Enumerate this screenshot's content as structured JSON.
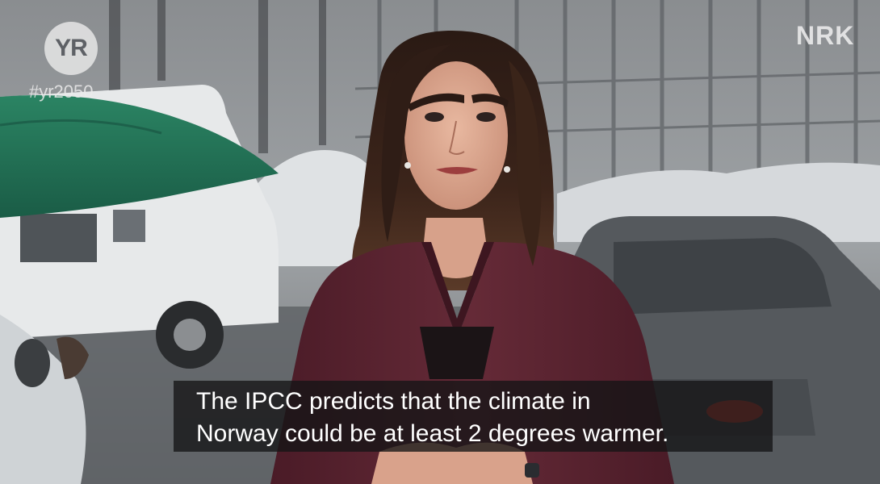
{
  "broadcast": {
    "yr_logo": "YR",
    "hashtag": "#yr2050",
    "channel_logo": "NRK"
  },
  "subtitle": {
    "line1": "The IPCC predicts that the climate in",
    "line2": "Norway could be at least 2 degrees warmer."
  },
  "colors": {
    "jacket": "#5a2230",
    "umbrella": "#1f6b52",
    "subtitle_bg": "#141416"
  }
}
